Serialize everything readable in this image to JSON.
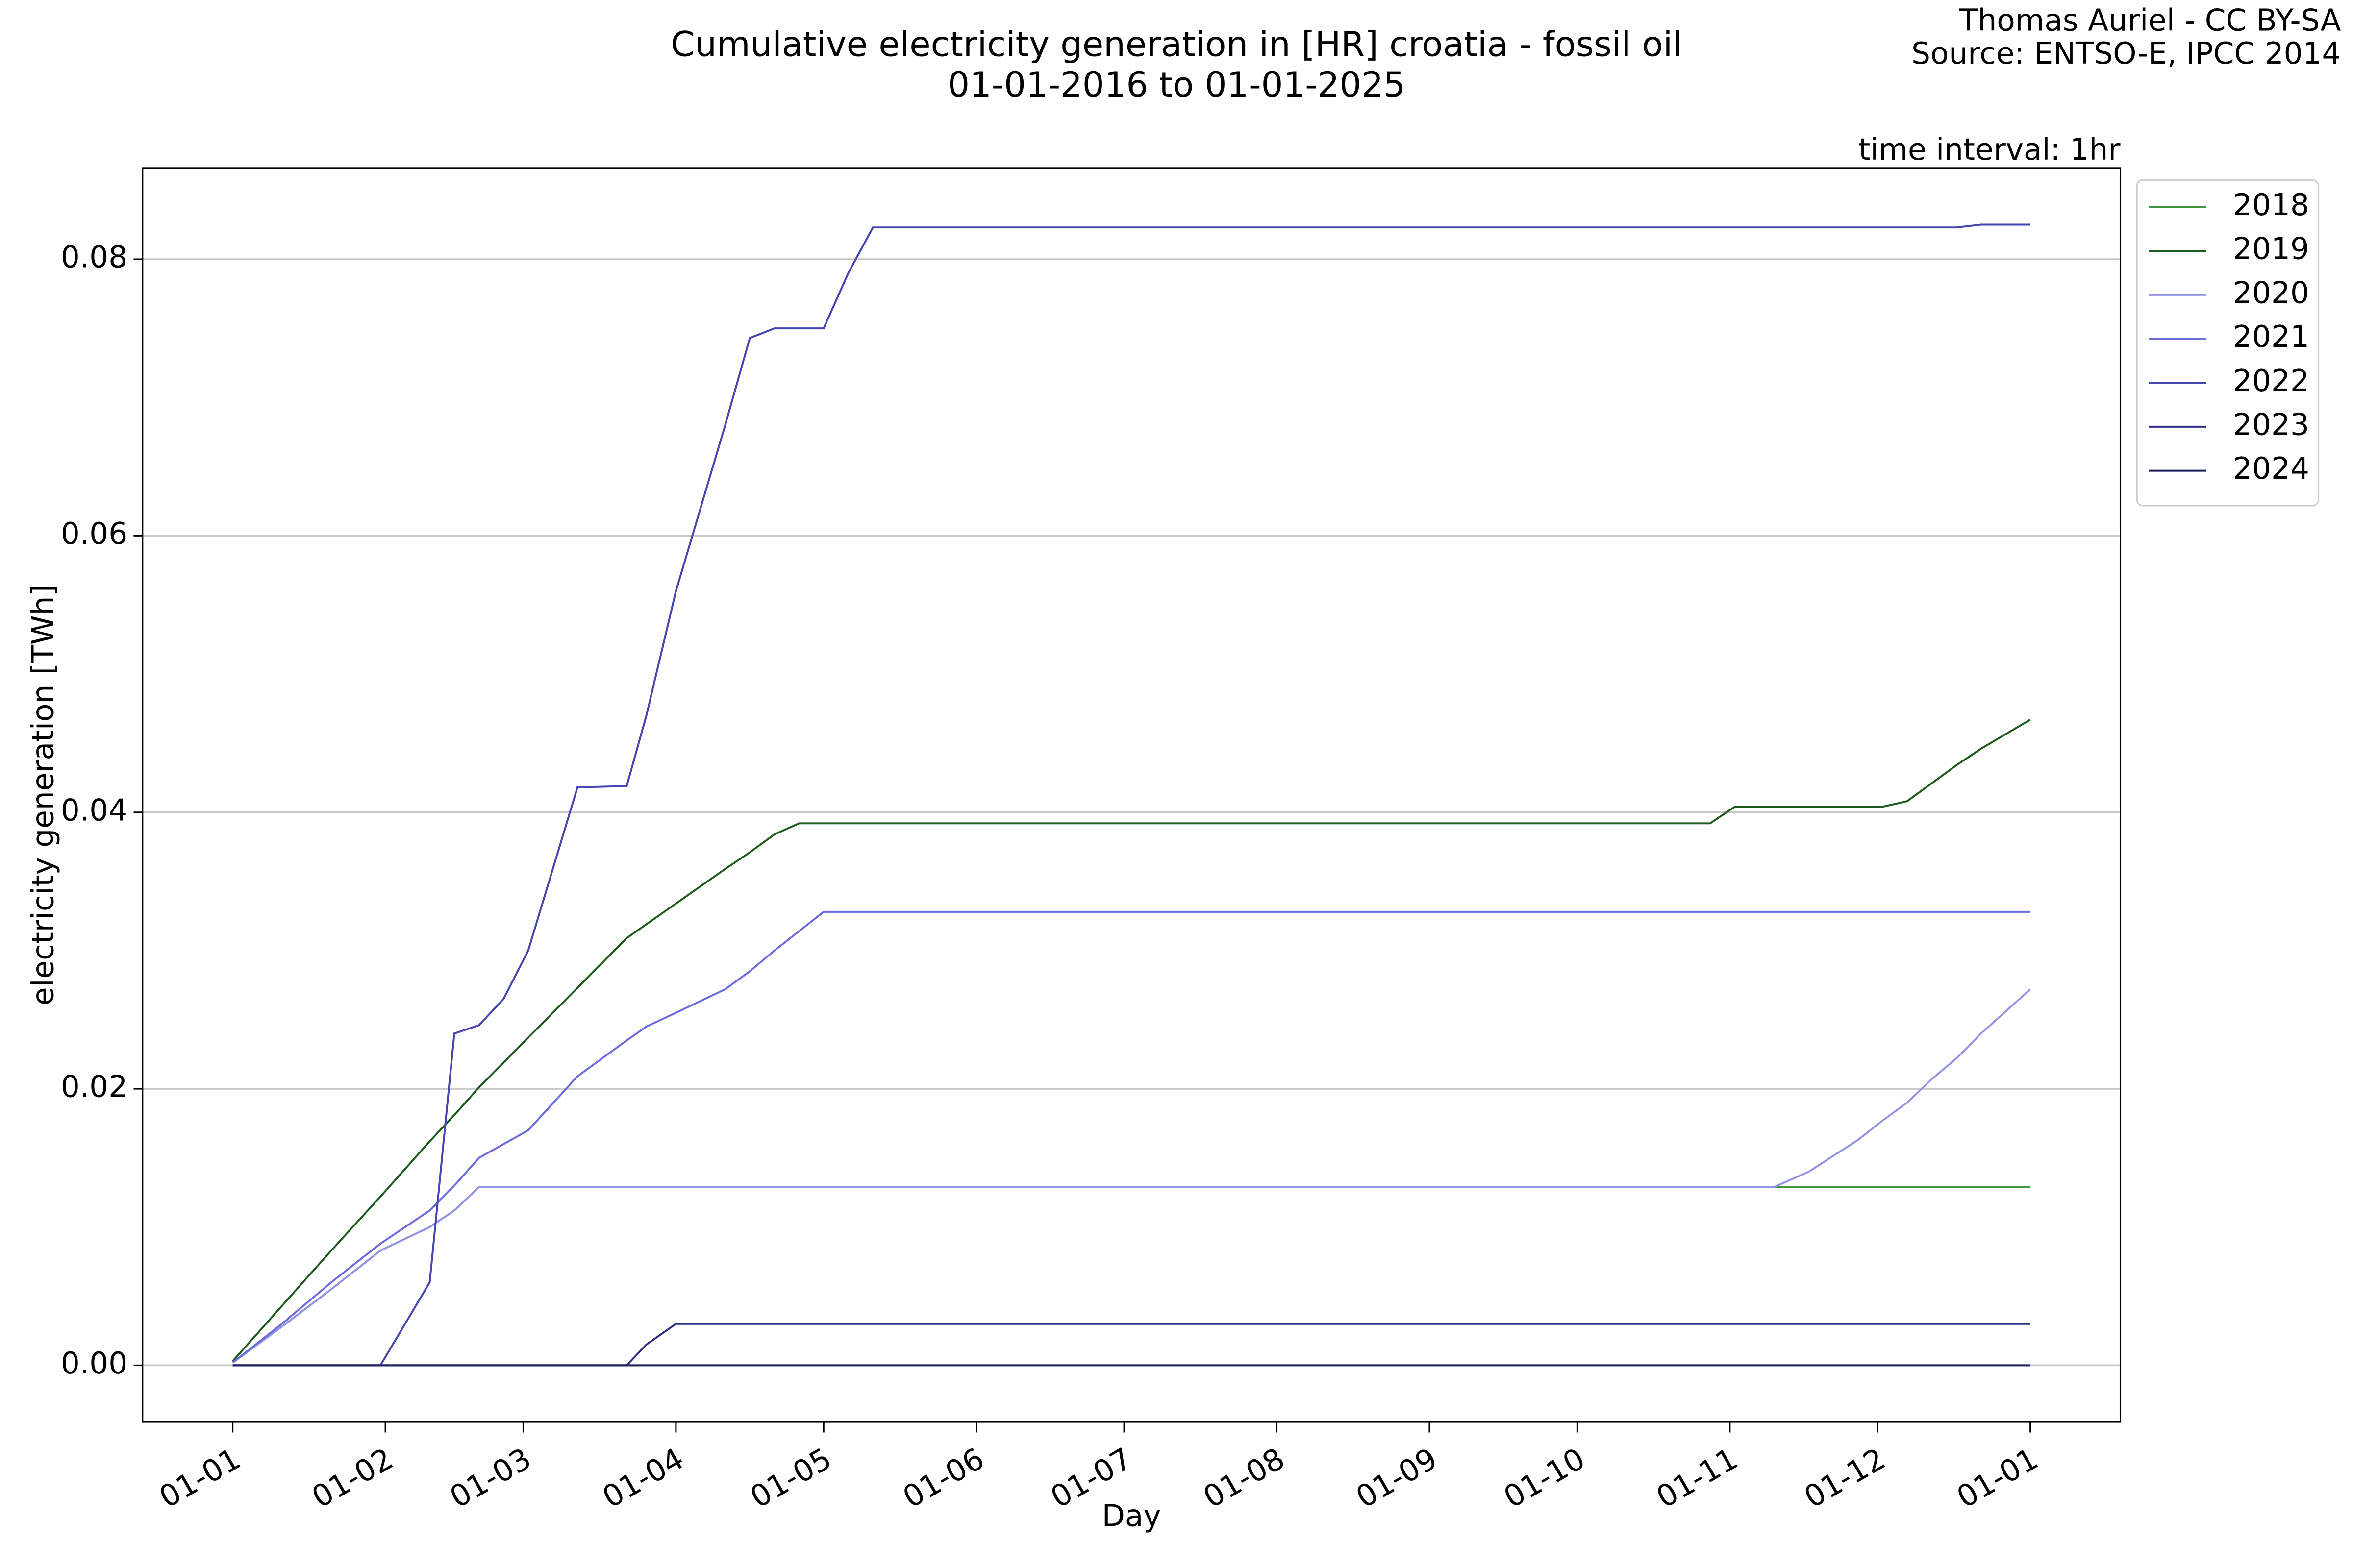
{
  "chart_data": {
    "type": "line",
    "title": "Cumulative electricity generation in [HR] croatia - fossil oil",
    "subtitle": "01-01-2016 to 01-01-2025",
    "credit": "Thomas Auriel - CC BY-SA",
    "source": "Source: ENTSO-E, IPCC 2014",
    "annotation": "time interval: 1hr",
    "x_label": "Day",
    "y_label": "electricity generation [TWh]",
    "x": [
      0,
      10,
      20,
      30,
      40,
      45,
      50,
      55,
      60,
      70,
      80,
      84,
      90,
      100,
      105,
      110,
      115,
      120,
      125,
      130,
      140,
      150,
      200,
      250,
      300,
      305,
      313,
      320,
      330,
      335,
      340,
      345,
      350,
      355,
      365
    ],
    "xlim": [
      -18.3,
      383.3
    ],
    "xticks": [
      {
        "value": 0,
        "label": "01-01"
      },
      {
        "value": 31,
        "label": "01-02"
      },
      {
        "value": 59,
        "label": "01-03"
      },
      {
        "value": 90,
        "label": "01-04"
      },
      {
        "value": 120,
        "label": "01-05"
      },
      {
        "value": 151,
        "label": "01-06"
      },
      {
        "value": 181,
        "label": "01-07"
      },
      {
        "value": 212,
        "label": "01-08"
      },
      {
        "value": 243,
        "label": "01-09"
      },
      {
        "value": 273,
        "label": "01-10"
      },
      {
        "value": 304,
        "label": "01-11"
      },
      {
        "value": 334,
        "label": "01-12"
      },
      {
        "value": 365,
        "label": "01-01"
      }
    ],
    "ylim": [
      -0.0041,
      0.0866
    ],
    "yticks": [
      {
        "value": 0,
        "label": "0.00"
      },
      {
        "value": 0.02,
        "label": "0.02"
      },
      {
        "value": 0.04,
        "label": "0.04"
      },
      {
        "value": 0.06,
        "label": "0.06"
      },
      {
        "value": 0.08,
        "label": "0.08"
      }
    ],
    "grid": true,
    "legend": "outside-upper-right",
    "series": [
      {
        "name": "2018",
        "color": "#3f9a3f",
        "values": [
          0.0002,
          0.0028,
          0.0055,
          0.0083,
          0.01,
          0.0112,
          0.0129,
          0.0129,
          0.0129,
          0.0129,
          0.0129,
          0.0129,
          0.0129,
          0.0129,
          0.0129,
          0.0129,
          0.0129,
          0.0129,
          0.0129,
          0.0129,
          0.0129,
          0.0129,
          0.0129,
          0.0129,
          0.0129,
          0.0129,
          0.0129,
          0.0129,
          0.0129,
          0.0129,
          0.0129,
          0.0129,
          0.0129,
          0.0129,
          0.0129
        ]
      },
      {
        "name": "2019",
        "color": "#1e5c1e",
        "values": [
          0.0003,
          0.0043,
          0.0083,
          0.0122,
          0.0162,
          0.0181,
          0.0201,
          0.0219,
          0.0237,
          0.0273,
          0.0309,
          0.0319,
          0.0334,
          0.0359,
          0.0371,
          0.0384,
          0.0392,
          0.0392,
          0.0392,
          0.0392,
          0.0392,
          0.0392,
          0.0392,
          0.0392,
          0.0392,
          0.0404,
          0.0404,
          0.0404,
          0.0404,
          0.0404,
          0.0408,
          0.0421,
          0.0434,
          0.0446,
          0.0467
        ]
      },
      {
        "name": "2020",
        "color": "#9494e6",
        "values": [
          0.0002,
          0.0028,
          0.0055,
          0.0083,
          0.01,
          0.0112,
          0.0129,
          0.0129,
          0.0129,
          0.0129,
          0.0129,
          0.0129,
          0.0129,
          0.0129,
          0.0129,
          0.0129,
          0.0129,
          0.0129,
          0.0129,
          0.0129,
          0.0129,
          0.0129,
          0.0129,
          0.0129,
          0.0129,
          0.0129,
          0.0129,
          0.014,
          0.0163,
          0.0177,
          0.019,
          0.0207,
          0.0222,
          0.024,
          0.0272
        ]
      },
      {
        "name": "2021",
        "color": "#6b6bdc",
        "values": [
          0.0002,
          0.003,
          0.006,
          0.0088,
          0.0112,
          0.013,
          0.015,
          0.016,
          0.017,
          0.0209,
          0.0235,
          0.0245,
          0.0255,
          0.0272,
          0.0285,
          0.03,
          0.0314,
          0.0328,
          0.0328,
          0.0328,
          0.0328,
          0.0328,
          0.0328,
          0.0328,
          0.0328,
          0.0328,
          0.0328,
          0.0328,
          0.0328,
          0.0328,
          0.0328,
          0.0328,
          0.0328,
          0.0328,
          0.0328
        ]
      },
      {
        "name": "2022",
        "color": "#4646b0",
        "values": [
          0,
          0,
          0,
          0,
          0.006,
          0.024,
          0.0246,
          0.0265,
          0.03,
          0.0418,
          0.0419,
          0.047,
          0.056,
          0.068,
          0.0743,
          0.075,
          0.075,
          0.075,
          0.079,
          0.0823,
          0.0823,
          0.0823,
          0.0823,
          0.0823,
          0.0823,
          0.0823,
          0.0823,
          0.0823,
          0.0823,
          0.0823,
          0.0823,
          0.0823,
          0.0823,
          0.0825,
          0.0825
        ]
      },
      {
        "name": "2023",
        "color": "#2f2f85",
        "values": [
          0,
          0,
          0,
          0,
          0,
          0,
          0,
          0,
          0,
          0,
          0,
          0.0015,
          0.003,
          0.003,
          0.003,
          0.003,
          0.003,
          0.003,
          0.003,
          0.003,
          0.003,
          0.003,
          0.003,
          0.003,
          0.003,
          0.003,
          0.003,
          0.003,
          0.003,
          0.003,
          0.003,
          0.003,
          0.003,
          0.003,
          0.003
        ]
      },
      {
        "name": "2024",
        "color": "#1c1c5a",
        "values": [
          0,
          0,
          0,
          0,
          0,
          0,
          0,
          0,
          0,
          0,
          0,
          0,
          0,
          0,
          0,
          0,
          0,
          0,
          0,
          0,
          0,
          0,
          0,
          0,
          0,
          0,
          0,
          0,
          0,
          0,
          0,
          0,
          0,
          0,
          0
        ]
      }
    ]
  }
}
